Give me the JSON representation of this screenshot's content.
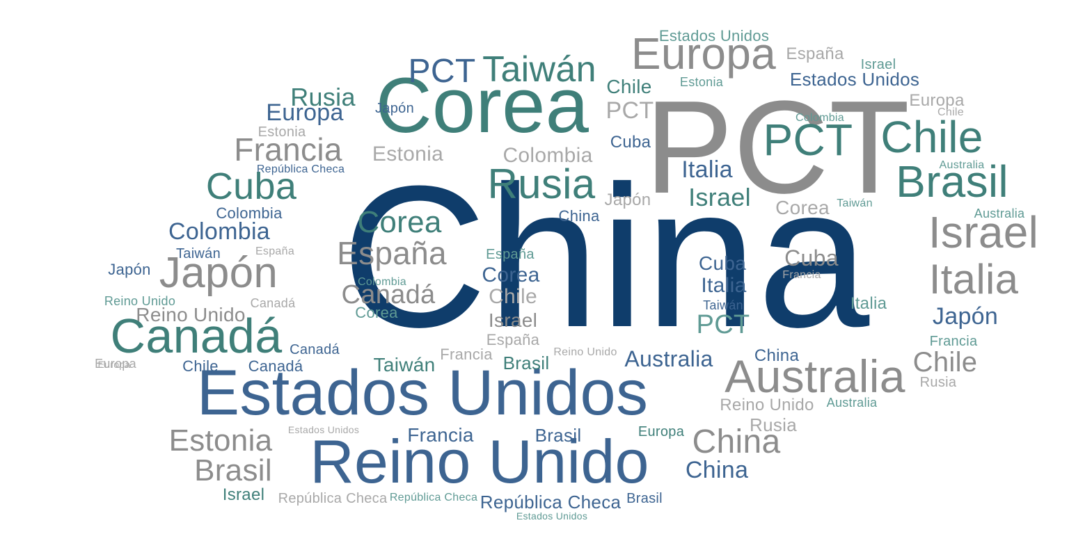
{
  "palette": {
    "navy": "#0f3d6b",
    "blue": "#3d6491",
    "teal": "#3f7f79",
    "gray": "#8c8c8c",
    "light_gray": "#a8a8a8",
    "light_teal": "#5f9a94"
  },
  "words": [
    {
      "text": "China",
      "color": "navy"
    },
    {
      "text": "PCT",
      "color": "gray"
    },
    {
      "text": "Corea",
      "color": "teal"
    },
    {
      "text": "Estados Unidos",
      "color": "blue"
    },
    {
      "text": "Reino Unido",
      "color": "blue"
    },
    {
      "text": "Europa",
      "color": "gray"
    },
    {
      "text": "Taiwán",
      "color": "teal"
    },
    {
      "text": "PCT",
      "color": "blue"
    },
    {
      "text": "Estados Unidos",
      "color": "light_teal"
    },
    {
      "text": "España",
      "color": "light_gray"
    },
    {
      "text": "Israel",
      "color": "light_teal"
    },
    {
      "text": "Estados Unidos",
      "color": "blue"
    },
    {
      "text": "Estonia",
      "color": "light_teal"
    },
    {
      "text": "Chile",
      "color": "teal"
    },
    {
      "text": "Rusia",
      "color": "teal"
    },
    {
      "text": "Europa",
      "color": "blue"
    },
    {
      "text": "Japón",
      "color": "blue"
    },
    {
      "text": "PCT",
      "color": "light_gray"
    },
    {
      "text": "Europa",
      "color": "light_gray"
    },
    {
      "text": "Colombia",
      "color": "light_teal"
    },
    {
      "text": "Estonia",
      "color": "light_gray"
    },
    {
      "text": "Francia",
      "color": "gray"
    },
    {
      "text": "Estonia",
      "color": "light_gray"
    },
    {
      "text": "Colombia",
      "color": "light_gray"
    },
    {
      "text": "Cuba",
      "color": "blue"
    },
    {
      "text": "PCT",
      "color": "teal"
    },
    {
      "text": "Chile",
      "color": "teal"
    },
    {
      "text": "República Checa",
      "color": "blue"
    },
    {
      "text": "Italia",
      "color": "blue"
    },
    {
      "text": "Australia",
      "color": "light_teal"
    },
    {
      "text": "Brasil",
      "color": "teal"
    },
    {
      "text": "Cuba",
      "color": "teal"
    },
    {
      "text": "Rusia",
      "color": "teal"
    },
    {
      "text": "Israel",
      "color": "teal"
    },
    {
      "text": "Japón",
      "color": "light_gray"
    },
    {
      "text": "Corea",
      "color": "light_gray"
    },
    {
      "text": "Taiwán",
      "color": "light_teal"
    },
    {
      "text": "Australia",
      "color": "light_teal"
    },
    {
      "text": "Colombia",
      "color": "blue"
    },
    {
      "text": "China",
      "color": "blue"
    },
    {
      "text": "Corea",
      "color": "teal"
    },
    {
      "text": "Israel",
      "color": "gray"
    },
    {
      "text": "Colombia",
      "color": "blue"
    },
    {
      "text": "Taiwán",
      "color": "blue"
    },
    {
      "text": "España",
      "color": "light_gray"
    },
    {
      "text": "España",
      "color": "gray"
    },
    {
      "text": "España",
      "color": "light_teal"
    },
    {
      "text": "Cuba",
      "color": "blue"
    },
    {
      "text": "Cuba",
      "color": "gray"
    },
    {
      "text": "Japón",
      "color": "blue"
    },
    {
      "text": "Japón",
      "color": "gray"
    },
    {
      "text": "Corea",
      "color": "blue"
    },
    {
      "text": "Italia",
      "color": "blue"
    },
    {
      "text": "Francia",
      "color": "light_gray"
    },
    {
      "text": "Italia",
      "color": "gray"
    },
    {
      "text": "Colombia",
      "color": "light_teal"
    },
    {
      "text": "Canadá",
      "color": "gray"
    },
    {
      "text": "Chile",
      "color": "light_gray"
    },
    {
      "text": "Reino Unido",
      "color": "light_teal"
    },
    {
      "text": "Canadá",
      "color": "light_gray"
    },
    {
      "text": "Taiwán",
      "color": "blue"
    },
    {
      "text": "Italia",
      "color": "light_teal"
    },
    {
      "text": "Reino Unido",
      "color": "gray"
    },
    {
      "text": "Corea",
      "color": "light_teal"
    },
    {
      "text": "Israel",
      "color": "gray"
    },
    {
      "text": "Japón",
      "color": "blue"
    },
    {
      "text": "PCT",
      "color": "light_teal"
    },
    {
      "text": "Canadá",
      "color": "teal"
    },
    {
      "text": "España",
      "color": "light_gray"
    },
    {
      "text": "Francia",
      "color": "light_teal"
    },
    {
      "text": "Canadá",
      "color": "blue"
    },
    {
      "text": "Francia",
      "color": "light_gray"
    },
    {
      "text": "Reino Unido",
      "color": "light_gray"
    },
    {
      "text": "Europa",
      "color": "light_gray"
    },
    {
      "text": "Chile",
      "color": "blue"
    },
    {
      "text": "Canadá",
      "color": "blue"
    },
    {
      "text": "Taiwán",
      "color": "teal"
    },
    {
      "text": "Brasil",
      "color": "teal"
    },
    {
      "text": "Australia",
      "color": "blue"
    },
    {
      "text": "China",
      "color": "blue"
    },
    {
      "text": "Chile",
      "color": "gray"
    },
    {
      "text": "Australia",
      "color": "gray"
    },
    {
      "text": "Rusia",
      "color": "light_gray"
    },
    {
      "text": "Reino Unido",
      "color": "light_gray"
    },
    {
      "text": "Australia",
      "color": "light_teal"
    },
    {
      "text": "Estados Unidos",
      "color": "light_gray"
    },
    {
      "text": "Rusia",
      "color": "light_gray"
    },
    {
      "text": "Estonia",
      "color": "gray"
    },
    {
      "text": "Francia",
      "color": "blue"
    },
    {
      "text": "Brasil",
      "color": "blue"
    },
    {
      "text": "Europa",
      "color": "teal"
    },
    {
      "text": "China",
      "color": "gray"
    },
    {
      "text": "Brasil",
      "color": "gray"
    },
    {
      "text": "China",
      "color": "blue"
    },
    {
      "text": "Israel",
      "color": "teal"
    },
    {
      "text": "República Checa",
      "color": "light_gray"
    },
    {
      "text": "República Checa",
      "color": "light_teal"
    },
    {
      "text": "República Checa",
      "color": "blue"
    },
    {
      "text": "Brasil",
      "color": "blue"
    },
    {
      "text": "Estados Unidos",
      "color": "light_teal"
    },
    {
      "text": "Europa",
      "color": "light_gray"
    },
    {
      "text": "Chile",
      "color": "light_gray"
    }
  ]
}
